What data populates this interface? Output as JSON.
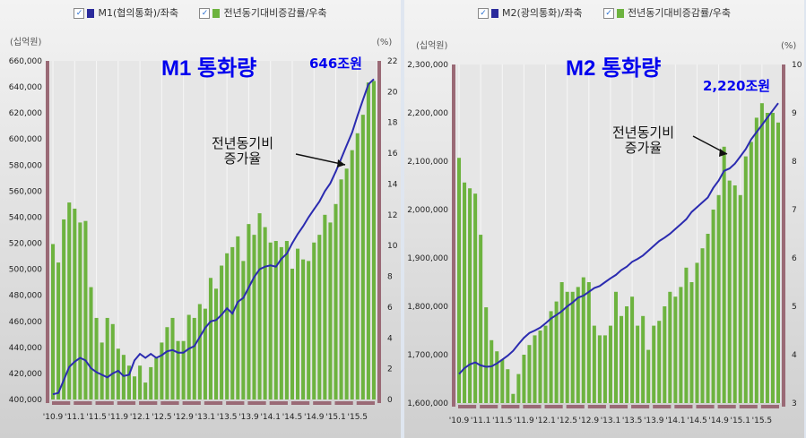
{
  "chart_data": [
    {
      "type": "bar+line",
      "title": "M1 통화량",
      "annotation_amount": "646조원",
      "annotation_note": [
        "전년동기비",
        "증가율"
      ],
      "legend": [
        {
          "label": "M1(협의통화)/좌축",
          "color": "#2b2b9c",
          "checked": true
        },
        {
          "label": "전년동기대비증감률/우축",
          "color": "#6db33f",
          "checked": true
        }
      ],
      "ylabel_left": "(십억원)",
      "ylabel_right": "(%)",
      "ylim_left": [
        400000,
        660000
      ],
      "ylim_right": [
        0,
        22
      ],
      "yticks_left": [
        "400,000",
        "420,000",
        "440,000",
        "460,000",
        "480,000",
        "500,000",
        "520,000",
        "540,000",
        "560,000",
        "580,000",
        "600,000",
        "620,000",
        "640,000",
        "660,000"
      ],
      "yticks_right": [
        "0",
        "2",
        "4",
        "6",
        "8",
        "10",
        "12",
        "14",
        "16",
        "18",
        "20",
        "22"
      ],
      "xticks": [
        "'10.9",
        "'11.1",
        "'11.5",
        "'11.9",
        "'12.1",
        "'12.5",
        "'12.9",
        "'13.1",
        "'13.5",
        "'13.9",
        "'14.1",
        "'14.5",
        "'14.9",
        "'15.1",
        "'15.5"
      ],
      "bars_pct": [
        10.1,
        8.9,
        11.7,
        12.8,
        12.4,
        11.5,
        11.6,
        7.3,
        5.3,
        3.7,
        5.3,
        4.9,
        3.3,
        2.9,
        2.2,
        1.5,
        2.2,
        1.1,
        2.1,
        2.7,
        3.7,
        4.7,
        5.3,
        3.8,
        3.8,
        5.5,
        5.3,
        6.2,
        5.9,
        7.9,
        7.2,
        8.7,
        9.5,
        9.9,
        10.6,
        9.0,
        11.4,
        10.7,
        12.1,
        11.2,
        10.2,
        10.3,
        9.9,
        10.3,
        8.5,
        9.8,
        9.1,
        9.0,
        10.2,
        10.7,
        12.0,
        11.5,
        12.7,
        14.3,
        15.0,
        16.2,
        17.3,
        18.5,
        20.6,
        20.7
      ],
      "line_values": [
        404000,
        405000,
        415000,
        425000,
        429000,
        432000,
        430000,
        424000,
        421000,
        419000,
        417000,
        420000,
        422000,
        418000,
        419000,
        430000,
        435000,
        432000,
        435000,
        432000,
        434000,
        437000,
        438000,
        436000,
        436000,
        439000,
        441000,
        448000,
        455000,
        460000,
        461000,
        465000,
        470000,
        466000,
        475000,
        478000,
        486000,
        494000,
        500000,
        502000,
        503000,
        502000,
        508000,
        512000,
        520000,
        527000,
        533000,
        540000,
        546000,
        552000,
        560000,
        566000,
        575000,
        585000,
        595000,
        605000,
        618000,
        630000,
        642000,
        646000
      ]
    },
    {
      "type": "bar+line",
      "title": "M2 통화량",
      "annotation_amount": "2,220조원",
      "annotation_note": [
        "전년동기비",
        "증가율"
      ],
      "legend": [
        {
          "label": "M2(광의통화)/좌축",
          "color": "#2b2b9c",
          "checked": true
        },
        {
          "label": "전년동기대비증감률/우축",
          "color": "#6db33f",
          "checked": true
        }
      ],
      "ylabel_left": "(십억원)",
      "ylabel_right": "(%)",
      "ylim_left": [
        1600000,
        2300000
      ],
      "ylim_right": [
        3,
        10
      ],
      "yticks_left": [
        "1,600,000",
        "1,700,000",
        "1,800,000",
        "1,900,000",
        "2,000,000",
        "2,100,000",
        "2,200,000",
        "2,300,000"
      ],
      "yticks_right": [
        "3",
        "4",
        "5",
        "6",
        "7",
        "8",
        "9",
        "10"
      ],
      "xticks": [
        "'10.9",
        "'11.1",
        "'11.5",
        "'11.9",
        "'12.1",
        "'12.5",
        "'12.9",
        "'13.1",
        "'13.5",
        "'13.9",
        "'14.1",
        "'14.5",
        "'14.9",
        "'15.1",
        "'15.5"
      ],
      "bars_pct": [
        8.07,
        7.56,
        7.44,
        7.33,
        6.48,
        4.98,
        4.3,
        4.07,
        3.9,
        3.7,
        3.19,
        3.6,
        4.0,
        4.2,
        4.4,
        4.5,
        4.6,
        4.9,
        5.1,
        5.5,
        5.3,
        5.3,
        5.4,
        5.6,
        5.5,
        4.6,
        4.4,
        4.4,
        4.6,
        5.3,
        4.8,
        5.0,
        5.2,
        4.6,
        4.8,
        4.1,
        4.6,
        4.7,
        5.0,
        5.3,
        5.2,
        5.4,
        5.8,
        5.5,
        5.9,
        6.2,
        6.5,
        7.0,
        7.3,
        8.3,
        7.6,
        7.5,
        7.3,
        8.1,
        8.4,
        8.9,
        9.2,
        9.0,
        9.0,
        8.8
      ],
      "line_values": [
        1660000,
        1672000,
        1680000,
        1684000,
        1678000,
        1675000,
        1676000,
        1682000,
        1690000,
        1698000,
        1708000,
        1722000,
        1735000,
        1745000,
        1750000,
        1756000,
        1765000,
        1775000,
        1782000,
        1790000,
        1800000,
        1808000,
        1818000,
        1822000,
        1830000,
        1838000,
        1842000,
        1850000,
        1858000,
        1865000,
        1875000,
        1882000,
        1892000,
        1898000,
        1905000,
        1915000,
        1925000,
        1935000,
        1942000,
        1950000,
        1960000,
        1970000,
        1980000,
        1995000,
        2005000,
        2015000,
        2025000,
        2045000,
        2060000,
        2080000,
        2085000,
        2095000,
        2110000,
        2125000,
        2145000,
        2160000,
        2175000,
        2190000,
        2205000,
        2220000
      ]
    }
  ]
}
